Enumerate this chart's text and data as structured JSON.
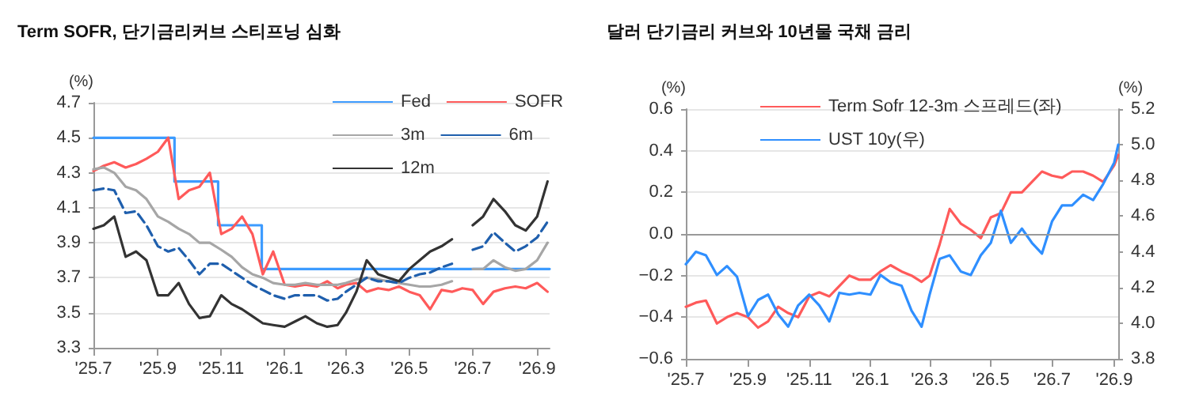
{
  "chart_data": [
    {
      "type": "line",
      "title": "Term SOFR, 단기금리커브 스티프닝 심화",
      "ylabel": "(%)",
      "legend": "top right",
      "grid": "y",
      "x": [
        "2025-07-01",
        "2025-07-11",
        "2025-07-21",
        "2025-08-01",
        "2025-08-11",
        "2025-08-21",
        "2025-09-01",
        "2025-09-11",
        "2025-09-21",
        "2025-10-01",
        "2025-10-11",
        "2025-10-21",
        "2025-11-01",
        "2025-11-11",
        "2025-11-21",
        "2025-12-01",
        "2025-12-11",
        "2025-12-21",
        "2026-01-01",
        "2026-01-11",
        "2026-01-21",
        "2026-02-01",
        "2026-02-11",
        "2026-02-21",
        "2026-03-01",
        "2026-03-11",
        "2026-03-21",
        "2026-04-01",
        "2026-04-11",
        "2026-04-21",
        "2026-05-01",
        "2026-05-11",
        "2026-05-21",
        "2026-06-01",
        "2026-06-11",
        "2026-06-21",
        "2026-07-01",
        "2026-07-11",
        "2026-07-21",
        "2026-08-01",
        "2026-08-11",
        "2026-08-21",
        "2026-09-01",
        "2026-09-11"
      ],
      "xlim": [
        "2025-07-01",
        "2026-09-13"
      ],
      "xticks": [
        {
          "value": "2025-07-01",
          "label": "'25.7"
        },
        {
          "value": "2025-09-01",
          "label": "'25.9"
        },
        {
          "value": "2025-11-01",
          "label": "'25.11"
        },
        {
          "value": "2026-01-01",
          "label": "'26.1"
        },
        {
          "value": "2026-03-01",
          "label": "'26.3"
        },
        {
          "value": "2026-05-01",
          "label": "'26.5"
        },
        {
          "value": "2026-07-01",
          "label": "'26.7"
        },
        {
          "value": "2026-09-01",
          "label": "'26.9"
        }
      ],
      "ylim": [
        3.3,
        4.7
      ],
      "yticks": [
        4.7,
        4.5,
        4.3,
        4.1,
        3.9,
        3.7,
        3.5,
        3.3
      ],
      "series": [
        {
          "name": "Fed",
          "type": "step",
          "color": "#3d9bff",
          "x": [
            "2025-07-01",
            "2025-09-17",
            "2025-10-29",
            "2025-12-10",
            "2026-09-13"
          ],
          "values": [
            4.5,
            4.25,
            4.0,
            3.75,
            3.75
          ]
        },
        {
          "name": "SOFR",
          "color": "#ff5a5a",
          "values": [
            4.31,
            4.34,
            4.36,
            4.33,
            4.35,
            4.38,
            4.42,
            4.5,
            4.15,
            4.2,
            4.22,
            4.3,
            3.95,
            3.98,
            4.05,
            3.95,
            3.72,
            3.85,
            3.66,
            3.65,
            3.66,
            3.65,
            3.68,
            3.64,
            3.66,
            3.67,
            3.62,
            3.64,
            3.63,
            3.65,
            3.62,
            3.6,
            3.52,
            3.63,
            3.62,
            3.64,
            3.63,
            3.55,
            3.62,
            3.64,
            3.65,
            3.64,
            3.67,
            3.62
          ]
        },
        {
          "name": "3m",
          "color": "#a6a6a6",
          "values": [
            4.32,
            4.33,
            4.3,
            4.22,
            4.2,
            4.15,
            4.05,
            4.02,
            3.98,
            3.95,
            3.9,
            3.9,
            3.86,
            3.82,
            3.76,
            3.72,
            3.7,
            3.67,
            3.66,
            3.66,
            3.67,
            3.66,
            3.66,
            3.66,
            3.67,
            3.69,
            3.7,
            3.69,
            3.68,
            3.67,
            3.66,
            3.65,
            3.65,
            3.66,
            3.68,
            null,
            3.75,
            3.75,
            3.8,
            3.76,
            3.74,
            3.75,
            3.8,
            3.9
          ]
        },
        {
          "name": "6m",
          "color": "#1f5fad",
          "line_style": "dashed",
          "values": [
            4.2,
            4.21,
            4.2,
            4.07,
            4.08,
            4.0,
            3.88,
            3.85,
            3.87,
            3.8,
            3.72,
            3.78,
            3.78,
            3.74,
            3.7,
            3.66,
            3.63,
            3.6,
            3.58,
            3.6,
            3.6,
            3.6,
            3.57,
            3.58,
            3.62,
            3.66,
            3.7,
            3.68,
            3.68,
            3.67,
            3.7,
            3.72,
            3.73,
            3.76,
            3.78,
            null,
            3.86,
            3.88,
            3.96,
            3.9,
            3.85,
            3.88,
            3.93,
            4.02
          ]
        },
        {
          "name": "12m",
          "color": "#333333",
          "values": [
            3.98,
            4.0,
            4.05,
            3.82,
            3.85,
            3.8,
            3.6,
            3.6,
            3.67,
            3.55,
            3.47,
            3.48,
            3.6,
            3.55,
            3.52,
            3.48,
            3.44,
            3.43,
            3.42,
            3.45,
            3.48,
            3.44,
            3.42,
            3.43,
            3.5,
            3.62,
            3.8,
            3.72,
            3.7,
            3.68,
            3.75,
            3.8,
            3.85,
            3.88,
            3.92,
            null,
            4.0,
            4.05,
            4.15,
            4.08,
            4.0,
            3.97,
            4.05,
            4.25
          ]
        }
      ]
    },
    {
      "type": "line",
      "title": "달러 단기금리 커브와 10년물 국채 금리",
      "ylabel": "(%)",
      "y2label": "(%)",
      "legend": "top left",
      "grid": "y",
      "x": [
        "2025-07-01",
        "2025-07-11",
        "2025-07-21",
        "2025-08-01",
        "2025-08-11",
        "2025-08-21",
        "2025-09-01",
        "2025-09-11",
        "2025-09-21",
        "2025-10-01",
        "2025-10-11",
        "2025-10-21",
        "2025-11-01",
        "2025-11-11",
        "2025-11-21",
        "2025-12-01",
        "2025-12-11",
        "2025-12-21",
        "2026-01-01",
        "2026-01-11",
        "2026-01-21",
        "2026-02-01",
        "2026-02-11",
        "2026-02-21",
        "2026-03-01",
        "2026-03-11",
        "2026-03-21",
        "2026-04-01",
        "2026-04-11",
        "2026-04-21",
        "2026-05-01",
        "2026-05-11",
        "2026-05-21",
        "2026-06-01",
        "2026-06-11",
        "2026-06-21",
        "2026-07-01",
        "2026-07-11",
        "2026-07-21",
        "2026-08-01",
        "2026-08-11",
        "2026-08-21",
        "2026-09-01",
        "2026-09-05"
      ],
      "xlim": [
        "2025-07-01",
        "2026-09-05"
      ],
      "xticks": [
        {
          "value": "2025-07-01",
          "label": "'25.7"
        },
        {
          "value": "2025-09-01",
          "label": "'25.9"
        },
        {
          "value": "2025-11-01",
          "label": "'25.11"
        },
        {
          "value": "2026-01-01",
          "label": "'26.1"
        },
        {
          "value": "2026-03-01",
          "label": "'26.3"
        },
        {
          "value": "2026-05-01",
          "label": "'26.5"
        },
        {
          "value": "2026-07-01",
          "label": "'26.7"
        },
        {
          "value": "2026-09-01",
          "label": "'26.9"
        }
      ],
      "ylim": [
        -0.6,
        0.6
      ],
      "yticks": [
        0.6,
        0.4,
        0.2,
        {
          "value": 0,
          "label": "0.0"
        },
        {
          "value": -0.2,
          "label": "−0.2"
        },
        {
          "value": -0.4,
          "label": "−0.4"
        },
        {
          "value": -0.6,
          "label": "−0.6"
        }
      ],
      "y2lim": [
        3.8,
        5.2
      ],
      "y2ticks": [
        5.2,
        {
          "value": 5,
          "label": "5.0"
        },
        4.8,
        4.6,
        4.4,
        4.2,
        {
          "value": 4,
          "label": "4.0"
        },
        3.8
      ],
      "ref_lines": [
        {
          "axis": "y",
          "value": 0,
          "color": "#999999"
        }
      ],
      "series": [
        {
          "name": "Term Sofr 12-3m 스프레드(좌)",
          "color": "#ff5a5a",
          "values": [
            -0.35,
            -0.33,
            -0.32,
            -0.43,
            -0.4,
            -0.38,
            -0.4,
            -0.45,
            -0.42,
            -0.35,
            -0.38,
            -0.4,
            -0.3,
            -0.28,
            -0.3,
            -0.25,
            -0.2,
            -0.22,
            -0.22,
            -0.18,
            -0.15,
            -0.18,
            -0.2,
            -0.23,
            -0.2,
            -0.05,
            0.12,
            0.05,
            0.02,
            -0.02,
            0.08,
            0.1,
            0.2,
            0.2,
            0.25,
            0.3,
            0.28,
            0.27,
            0.3,
            0.3,
            0.28,
            0.25,
            0.33,
            0.38
          ]
        },
        {
          "name": "UST 10y(우)",
          "color": "#2f8fff",
          "axis": "y2",
          "values": [
            4.33,
            4.4,
            4.38,
            4.27,
            4.32,
            4.26,
            4.04,
            4.13,
            4.16,
            4.05,
            3.98,
            4.1,
            4.16,
            4.1,
            4.01,
            4.17,
            4.16,
            4.17,
            4.16,
            4.27,
            4.23,
            4.21,
            4.07,
            3.98,
            4.16,
            4.36,
            4.38,
            4.29,
            4.27,
            4.38,
            4.45,
            4.63,
            4.45,
            4.53,
            4.45,
            4.39,
            4.57,
            4.66,
            4.66,
            4.72,
            4.69,
            4.78,
            4.9,
            5.0
          ]
        }
      ]
    }
  ]
}
